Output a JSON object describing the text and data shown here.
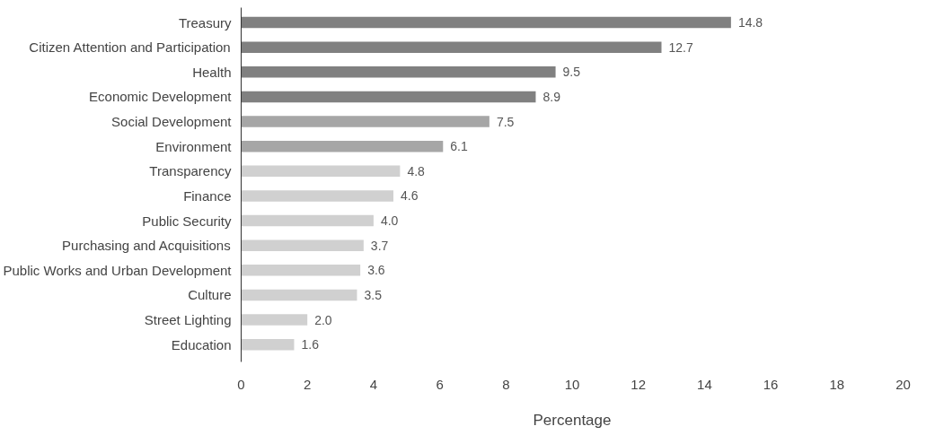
{
  "chart_data": {
    "type": "bar",
    "orientation": "horizontal",
    "xlabel": "Percentage",
    "categories": [
      "Treasury",
      "Citizen Attention and Participation",
      "Health",
      "Economic Development",
      "Social Development",
      "Environment",
      "Transparency",
      "Finance",
      "Public Security",
      "Purchasing and Acquisitions",
      "Public Works and Urban Development",
      "Culture",
      "Street Lighting",
      "Education"
    ],
    "values": [
      14.8,
      12.7,
      9.5,
      8.9,
      7.5,
      6.1,
      4.8,
      4.6,
      4.0,
      3.7,
      3.6,
      3.5,
      2.0,
      1.6
    ],
    "colors": [
      "#808080",
      "#808080",
      "#808080",
      "#808080",
      "#a6a6a6",
      "#a6a6a6",
      "#d0d0d0",
      "#d0d0d0",
      "#d0d0d0",
      "#d0d0d0",
      "#d0d0d0",
      "#d0d0d0",
      "#d0d0d0",
      "#d0d0d0"
    ],
    "xlim": [
      0,
      20
    ],
    "xticks": [
      0,
      2,
      4,
      6,
      8,
      10,
      12,
      14,
      16,
      18,
      20
    ],
    "value_labels": [
      "14.8",
      "12.7",
      "9.5",
      "8.9",
      "7.5",
      "6.1",
      "4.8",
      "4.6",
      "4.0",
      "3.7",
      "3.6",
      "3.5",
      "2.0",
      "1.6"
    ],
    "grid": false
  }
}
